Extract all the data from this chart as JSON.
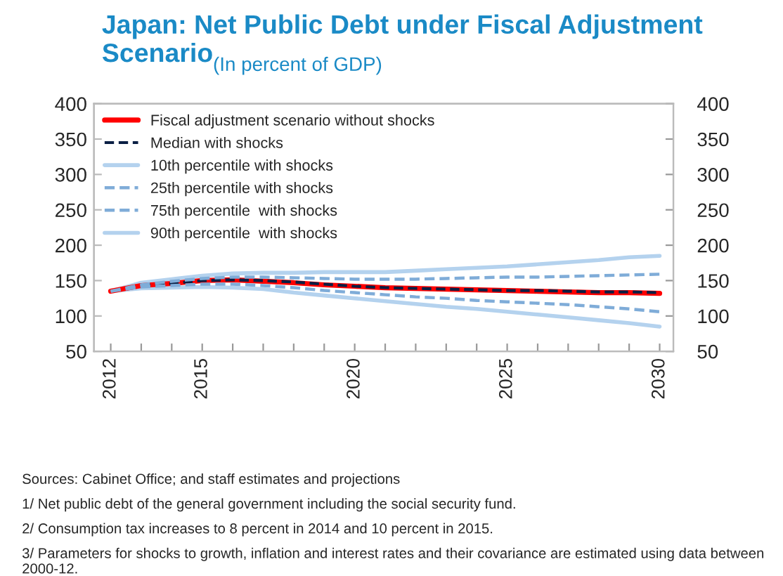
{
  "chart_data": {
    "type": "line",
    "title": "Japan: Net Public Debt under Fiscal Adjustment Scenario",
    "subtitle": "(In percent of GDP)",
    "x": [
      2012,
      2013,
      2014,
      2015,
      2016,
      2017,
      2018,
      2019,
      2020,
      2021,
      2022,
      2023,
      2024,
      2025,
      2026,
      2027,
      2028,
      2029,
      2030
    ],
    "series": [
      {
        "name": "Fiscal adjustment scenario without shocks",
        "color": "#ff0000",
        "line_style": "solid",
        "values": [
          135,
          143,
          146,
          150,
          151,
          149,
          147,
          144,
          142,
          140,
          139,
          138,
          137,
          136,
          135,
          134,
          133,
          133,
          132
        ]
      },
      {
        "name": "Median with shocks",
        "color": "#0a1f44",
        "line_style": "dashed",
        "values": [
          null,
          143,
          146,
          150,
          151,
          150,
          148,
          145,
          142,
          140,
          139,
          138,
          137,
          136,
          136,
          135,
          134,
          134,
          133
        ]
      },
      {
        "name": "10th percentile with shocks",
        "color": "#b4d2ee",
        "line_style": "solid",
        "values": [
          135,
          139,
          140,
          141,
          140,
          138,
          133,
          129,
          125,
          121,
          117,
          113,
          110,
          106,
          102,
          98,
          94,
          90,
          85
        ]
      },
      {
        "name": "25th percentile with shocks",
        "color": "#7facd8",
        "line_style": "dashed",
        "values": [
          135,
          141,
          143,
          145,
          145,
          143,
          140,
          136,
          133,
          130,
          127,
          125,
          122,
          120,
          118,
          116,
          113,
          110,
          106
        ]
      },
      {
        "name": "75th percentile  with shocks",
        "color": "#7facd8",
        "line_style": "dashed",
        "values": [
          135,
          144,
          149,
          153,
          155,
          155,
          154,
          153,
          152,
          152,
          152,
          153,
          154,
          155,
          155,
          156,
          157,
          158,
          159
        ]
      },
      {
        "name": "90th percentile  with shocks",
        "color": "#b4d2ee",
        "line_style": "solid",
        "values": [
          135,
          147,
          152,
          157,
          160,
          161,
          161,
          162,
          162,
          162,
          164,
          166,
          168,
          170,
          173,
          176,
          179,
          183,
          185
        ]
      }
    ],
    "xlim": [
      2011.45,
      2030.45
    ],
    "xticks": [
      2012,
      {
        "value": 2013,
        "label": null
      },
      {
        "value": 2014,
        "label": null
      },
      2015,
      {
        "value": 2016,
        "label": null
      },
      {
        "value": 2017,
        "label": null
      },
      {
        "value": 2018,
        "label": null
      },
      {
        "value": 2019,
        "label": null
      },
      2020,
      {
        "value": 2021,
        "label": null
      },
      {
        "value": 2022,
        "label": null
      },
      {
        "value": 2023,
        "label": null
      },
      {
        "value": 2024,
        "label": null
      },
      2025,
      {
        "value": 2026,
        "label": null
      },
      {
        "value": 2027,
        "label": null
      },
      {
        "value": 2028,
        "label": null
      },
      {
        "value": 2029,
        "label": null
      },
      2030
    ],
    "ylim": [
      50,
      400
    ],
    "yticks": [
      50,
      100,
      150,
      200,
      250,
      300,
      350,
      400
    ],
    "y2lim": [
      50,
      400
    ],
    "y2ticks": [
      50,
      100,
      150,
      200,
      250,
      300,
      350,
      400
    ],
    "grid": false,
    "legend": "top left",
    "annotations": [
      "Sources: Cabinet Office; and staff estimates and projections",
      "1/ Net public debt of the general government including the social security fund.",
      "2/ Consumption tax increases to 8 percent in 2014 and 10 percent in 2015.",
      "3/ Parameters for shocks to growth, inflation and interest rates and their covariance are estimated using data between 2000-12."
    ]
  }
}
